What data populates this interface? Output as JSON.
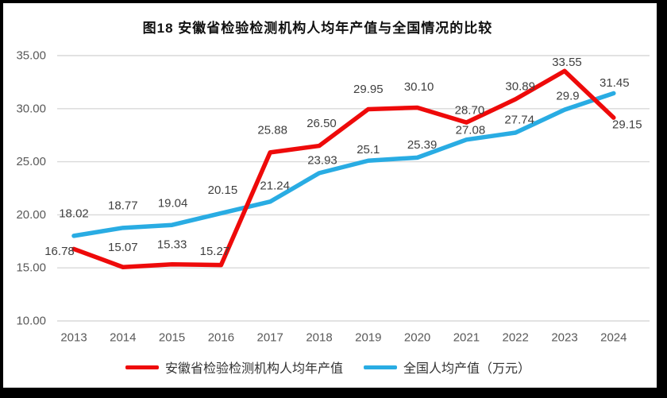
{
  "title": "图18 安徽省检验检测机构人均年产值与全国情况的比较",
  "chart_data": {
    "type": "line",
    "categories": [
      "2013",
      "2014",
      "2015",
      "2016",
      "2017",
      "2018",
      "2019",
      "2020",
      "2021",
      "2022",
      "2023",
      "2024"
    ],
    "series": [
      {
        "name": "安徽省检验检测机构人均年产值",
        "color": "#ee0a0a",
        "values": [
          16.78,
          15.07,
          15.33,
          15.27,
          25.88,
          26.5,
          29.95,
          30.1,
          28.7,
          30.89,
          33.55,
          29.15
        ],
        "point_labels": [
          "16.78",
          "15.07",
          "15.33",
          "15.27",
          "25.88",
          "26.50",
          "29.95",
          "30.10",
          "28.70",
          "30.89",
          "33.55",
          "29.15"
        ],
        "label_offsets": [
          [
            -18,
            3
          ],
          [
            0,
            -25
          ],
          [
            0,
            -25
          ],
          [
            -8,
            -17
          ],
          [
            3,
            -28
          ],
          [
            3,
            -28
          ],
          [
            0,
            -25
          ],
          [
            2,
            -26
          ],
          [
            4,
            -15
          ],
          [
            6,
            -16
          ],
          [
            3,
            -11
          ],
          [
            17,
            9
          ]
        ]
      },
      {
        "name": "全国人均产值（万元）",
        "color": "#29ace3",
        "values": [
          18.02,
          18.77,
          19.04,
          20.15,
          21.24,
          23.93,
          25.1,
          25.39,
          27.08,
          27.74,
          29.9,
          31.45
        ],
        "point_labels": [
          "18.02",
          "18.77",
          "19.04",
          "20.15",
          "21.24",
          "23.93",
          "25.1",
          "25.39",
          "27.08",
          "27.74",
          "29.9",
          "31.45"
        ],
        "label_offsets": [
          [
            0,
            -28
          ],
          [
            0,
            -28
          ],
          [
            1,
            -27
          ],
          [
            2,
            -29
          ],
          [
            6,
            -20
          ],
          [
            4,
            -16
          ],
          [
            0,
            -14
          ],
          [
            6,
            -16
          ],
          [
            5,
            -12
          ],
          [
            5,
            -16
          ],
          [
            4,
            -17
          ],
          [
            1,
            -13
          ]
        ]
      }
    ],
    "xlabel": "",
    "ylabel": "",
    "y_axis": {
      "tick_labels": [
        "35.00",
        "30.00",
        "25.00",
        "20.00",
        "15.00",
        "10.00"
      ],
      "tick_values": [
        35,
        30,
        25,
        20,
        15,
        10
      ],
      "min": 10,
      "max": 35
    },
    "grid": true,
    "legend_position": "bottom",
    "style": {
      "gridline_color": "#d9d9d9",
      "axis_text_color": "#595959",
      "data_label_color": "#404040",
      "background": "#ffffff",
      "frame_color": "#000000"
    }
  }
}
